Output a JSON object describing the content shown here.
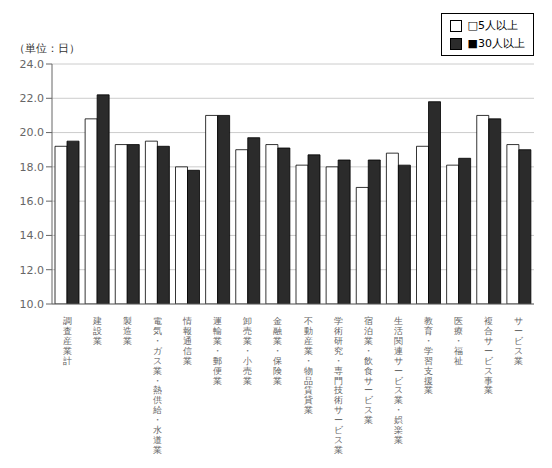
{
  "chart_data": {
    "type": "bar",
    "ylabel": "（単位：日）",
    "categories": [
      "調\n査\n産\n業\n計",
      "建\n設\n業",
      "製\n造\n業",
      "電\n気\n・\nガ\nス\n業\n・\n熱\n供\n給\n・\n水\n道\n業",
      "情\n報\n通\n信\n業",
      "運\n輸\n業\n・\n郵\n便\n業",
      "卸\n売\n業\n・\n小\n売\n業",
      "金\n融\n業\n・\n保\n険\n業",
      "不\n動\n産\n業\n・\n物\n品\n賃\n貸\n業",
      "学\n術\n研\n究\n・\n専\n門\n技\n術\nサ\nー\nビ\nス\n業",
      "宿\n泊\n業\n・\n飲\n食\nサ\nー\nビ\nス\n業",
      "生\n活\n関\n連\nサ\nー\nビ\nス\n業\n・\n娯\n楽\n業",
      "教\n育\n・\n学\n習\n支\n援\n業",
      "医\n療\n・\n福\n祉",
      "複\n合\nサ\nー\nビ\nス\n事\n業",
      "サ\nー\nビ\nス\n業"
    ],
    "series": [
      {
        "name": "□5人以上",
        "color": "#ffffff",
        "values": [
          19.2,
          20.8,
          19.3,
          19.5,
          18.0,
          21.0,
          19.0,
          19.3,
          18.1,
          18.0,
          16.8,
          18.8,
          19.2,
          18.1,
          21.0,
          19.3
        ]
      },
      {
        "name": "■30人以上",
        "color": "#2b2b2b",
        "values": [
          19.5,
          22.2,
          19.3,
          19.2,
          17.8,
          21.0,
          19.7,
          19.1,
          18.7,
          18.4,
          18.4,
          18.1,
          21.8,
          18.5,
          20.8,
          19.0
        ]
      }
    ],
    "ylim": [
      10.0,
      24.0
    ],
    "yticks": [
      {
        "value": 10,
        "label": "10.0"
      },
      {
        "value": 12,
        "label": "12.0"
      },
      {
        "value": 14,
        "label": "14.0"
      },
      {
        "value": 16,
        "label": "16.0"
      },
      {
        "value": 18,
        "label": "18.0"
      },
      {
        "value": 20,
        "label": "20.0"
      },
      {
        "value": 22,
        "label": "22.0"
      },
      {
        "value": 24,
        "label": "24.0"
      }
    ],
    "grid": true,
    "legend": "upper right"
  }
}
